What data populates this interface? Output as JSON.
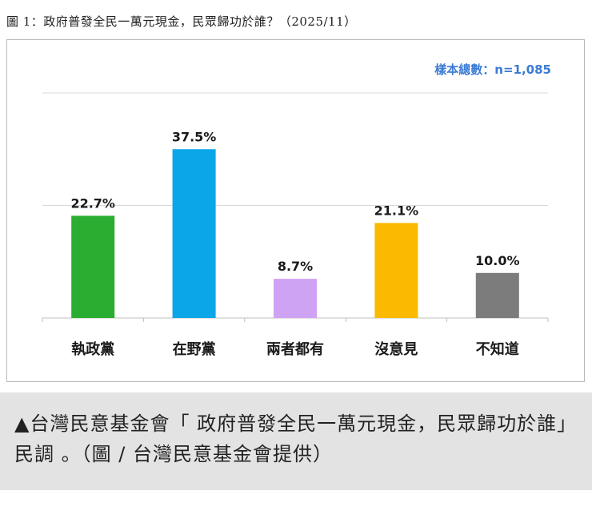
{
  "figure_title": "圖 1：政府普發全民一萬元現金，民眾歸功於誰？（2025/11）",
  "caption": "▲台灣民意基金會「 政府普發全民一萬元現金，民眾歸功於誰」民調 。（圖 / 台灣民意基金會提供）",
  "colors": {
    "sample_text": "#3b7bd4",
    "gridline": "#d9d9d9",
    "baseline": "#bfbfbf"
  },
  "chart_data": {
    "type": "bar",
    "title": "",
    "xlabel": "",
    "ylabel": "",
    "sample_size_label": "樣本總數：n=1,085",
    "categories": [
      "執政黨",
      "在野黨",
      "兩者都有",
      "沒意見",
      "不知道"
    ],
    "values": [
      22.7,
      37.5,
      8.7,
      21.1,
      10.0
    ],
    "value_labels": [
      "22.7%",
      "37.5%",
      "8.7%",
      "21.1%",
      "10.0%"
    ],
    "colors": [
      "#2aad31",
      "#0aa6e8",
      "#cfa3f3",
      "#fbba00",
      "#7c7c7c"
    ],
    "ylim": [
      0,
      50
    ],
    "gridlines": [
      25,
      50
    ],
    "grid": true,
    "legend": "none"
  }
}
